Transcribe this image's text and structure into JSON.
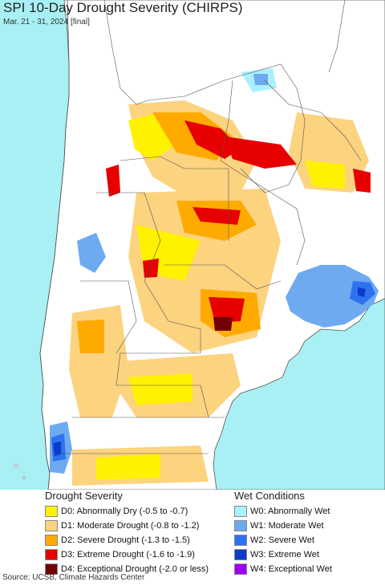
{
  "map": {
    "title": "SPI 10-Day Drought Severity (CHIRPS)",
    "subtitle": "Mar. 21 - 31, 2024 [final]",
    "colors": {
      "ocean": "#a8f0f4",
      "land": "#ffffff",
      "border": "#555555",
      "D0": "#fff200",
      "D1": "#fcd37f",
      "D2": "#ffaa00",
      "D3": "#e60000",
      "D4": "#730000",
      "W0": "#aaf0ff",
      "W1": "#6eaaf0",
      "W2": "#2d73f0",
      "W3": "#0a3cc8",
      "W4": "#a000f0"
    }
  },
  "legend": {
    "drought_title": "Drought Severity",
    "wet_title": "Wet Conditions",
    "drought_items": [
      {
        "label": "D0: Abnormally Dry (-0.5 to -0.7)",
        "color": "#fff200"
      },
      {
        "label": "D1: Moderate Drought (-0.8 to -1.2)",
        "color": "#fcd37f"
      },
      {
        "label": "D2: Severe Drought (-1.3 to -1.5)",
        "color": "#ffaa00"
      },
      {
        "label": "D3: Extreme Drought (-1.6 to -1.9)",
        "color": "#e60000"
      },
      {
        "label": "D4: Exceptional Drought (-2.0 or less)",
        "color": "#730000"
      }
    ],
    "wet_items": [
      {
        "label": "W0: Abnormally Wet",
        "color": "#aaf0ff"
      },
      {
        "label": "W1: Moderate Wet",
        "color": "#6eaaf0"
      },
      {
        "label": "W2: Severe Wet",
        "color": "#2d73f0"
      },
      {
        "label": "W3: Extreme Wet",
        "color": "#0a3cc8"
      },
      {
        "label": "W4: Exceptional Wet",
        "color": "#a000f0"
      }
    ]
  },
  "footer": {
    "source": "Source: UCSB, Climate Hazards Center"
  }
}
